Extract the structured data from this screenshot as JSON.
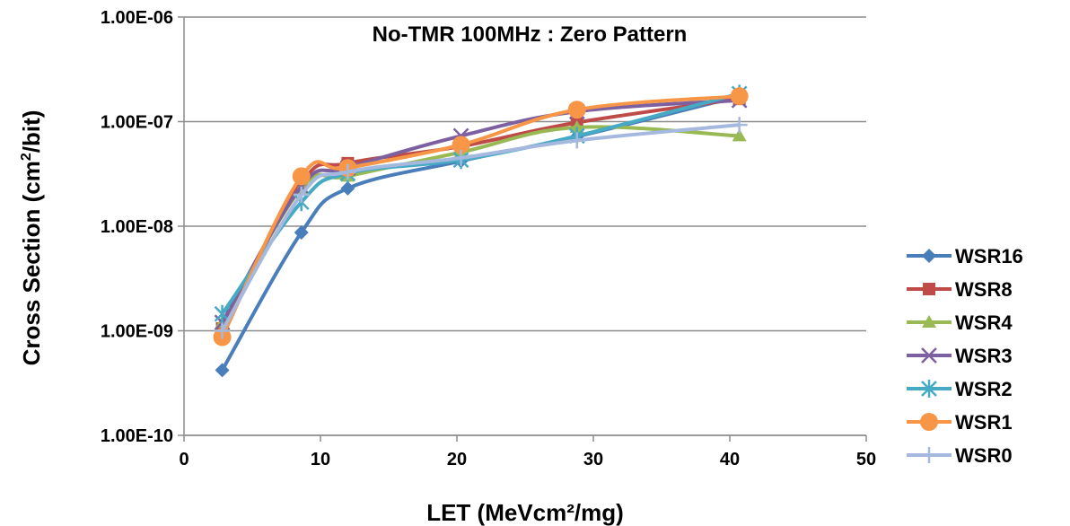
{
  "chart_data": {
    "type": "line",
    "title": "No-TMR 100MHz : Zero Pattern",
    "xlabel": "LET (MeVcm²/mg)",
    "ylabel_pre": "Cross Section (cm",
    "ylabel_sup": "2",
    "ylabel_post": "/bit)",
    "xlim": [
      0,
      50
    ],
    "xticks": [
      0,
      10,
      20,
      30,
      40,
      50
    ],
    "yscale": "log",
    "ylim": [
      1e-10,
      1e-06
    ],
    "yticks": [
      1e-10,
      1e-09,
      1e-08,
      1e-07,
      1e-06
    ],
    "ytick_labels": [
      "1.00E-10",
      "1.00E-09",
      "1.00E-08",
      "1.00E-07",
      "1.00E-06"
    ],
    "grid": "horizontal",
    "legend_position": "right",
    "series": [
      {
        "name": "WSR16",
        "color": "#4a7ebb",
        "marker": "diamond",
        "x": [
          2.8,
          8.6,
          12,
          20.3,
          28.8,
          40.7
        ],
        "y": [
          4.2e-10,
          8.7e-09,
          2.3e-08,
          4.2e-08,
          7.2e-08,
          1.75e-07
        ]
      },
      {
        "name": "WSR8",
        "color": "#be4b48",
        "marker": "square",
        "x": [
          2.8,
          8.6,
          12,
          20.3,
          28.8,
          40.7
        ],
        "y": [
          1.05e-09,
          2.6e-08,
          4e-08,
          5.8e-08,
          9.8e-08,
          1.65e-07
        ]
      },
      {
        "name": "WSR4",
        "color": "#98b954",
        "marker": "triangle",
        "x": [
          2.8,
          8.6,
          12,
          20.3,
          28.8,
          40.7
        ],
        "y": [
          1.2e-09,
          2.3e-08,
          3e-08,
          5.1e-08,
          8.8e-08,
          7.3e-08
        ]
      },
      {
        "name": "WSR3",
        "color": "#7d60a0",
        "marker": "x",
        "x": [
          2.8,
          8.6,
          12,
          20.3,
          28.8,
          40.7
        ],
        "y": [
          1.2e-09,
          2.4e-08,
          3.6e-08,
          7.3e-08,
          1.25e-07,
          1.6e-07
        ]
      },
      {
        "name": "WSR2",
        "color": "#46aac5",
        "marker": "star",
        "x": [
          2.8,
          8.6,
          12,
          20.3,
          28.8,
          40.7
        ],
        "y": [
          1.45e-09,
          1.7e-08,
          3.2e-08,
          4.3e-08,
          7.3e-08,
          1.85e-07
        ]
      },
      {
        "name": "WSR1",
        "color": "#f79646",
        "marker": "circle",
        "x": [
          2.8,
          8.6,
          12,
          20.3,
          28.8,
          40.7
        ],
        "y": [
          8.7e-10,
          3e-08,
          3.6e-08,
          6e-08,
          1.3e-07,
          1.75e-07
        ]
      },
      {
        "name": "WSR0",
        "color": "#a5b9de",
        "marker": "plus",
        "x": [
          2.8,
          8.6,
          12,
          20.3,
          28.8,
          40.7
        ],
        "y": [
          1e-09,
          2e-08,
          3.3e-08,
          4.5e-08,
          6.6e-08,
          9.3e-08
        ]
      }
    ]
  }
}
